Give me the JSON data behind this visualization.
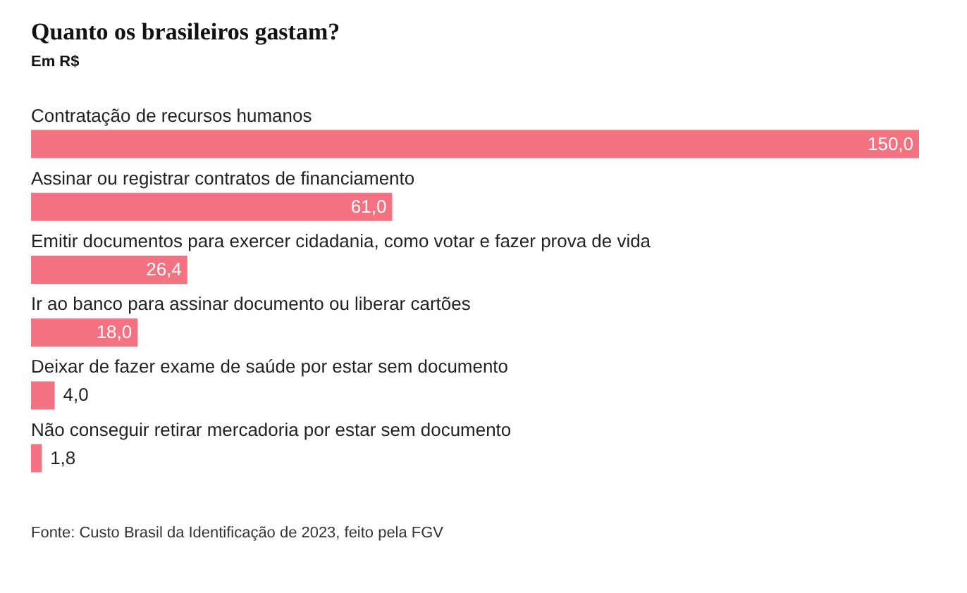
{
  "chart_data": {
    "type": "bar",
    "orientation": "horizontal",
    "title": "Quanto os brasileiros gastam?",
    "subtitle": "Em R$",
    "categories": [
      "Contratação de recursos humanos",
      "Assinar ou registrar contratos de financiamento",
      "Emitir documentos para exercer cidadania, como votar e fazer prova de vida",
      "Ir ao banco para assinar documento ou liberar cartões",
      "Deixar de fazer exame de saúde por estar sem documento",
      "Não conseguir retirar mercadoria por estar sem documento"
    ],
    "values": [
      150,
      61,
      26.4,
      18,
      4,
      1.8
    ],
    "color": "#f47282",
    "value_labels": [
      "150,0",
      "61,0",
      "26,4",
      "18,0",
      "4,0",
      "1,8"
    ],
    "annotations": [
      "Fonte: Custo Brasil da Identificação de 2023, feito pela FGV"
    ]
  }
}
